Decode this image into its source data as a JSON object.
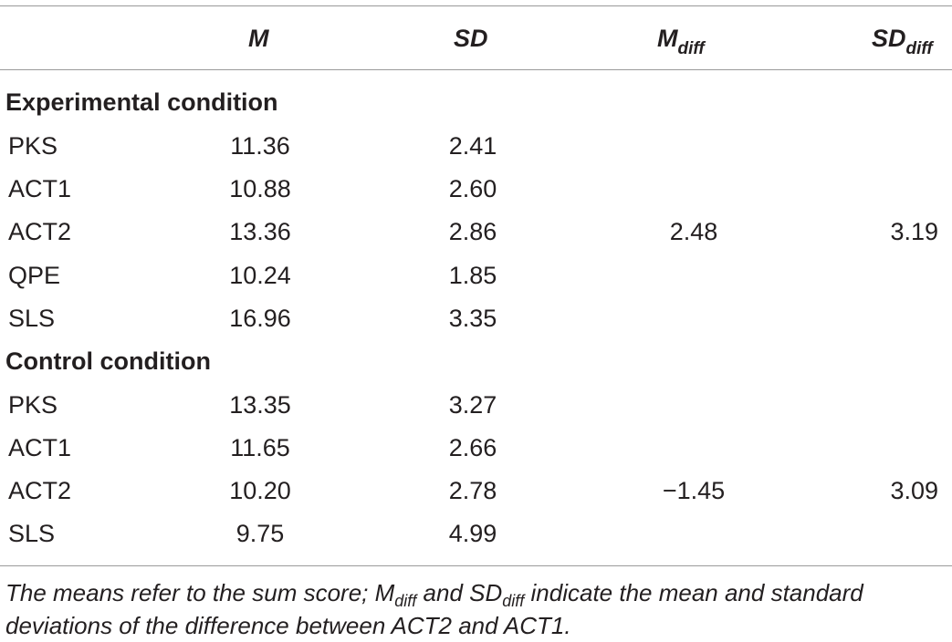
{
  "header": {
    "col_m": "M",
    "col_sd": "SD",
    "col_mdiff_base": "M",
    "col_mdiff_sub": "diff",
    "col_sddiff_base": "SD",
    "col_sddiff_sub": "diff"
  },
  "experimental": {
    "title": "Experimental condition",
    "rows": [
      {
        "label": "PKS",
        "m": "11.36",
        "sd": "2.41"
      },
      {
        "label": "ACT1",
        "m": "10.88",
        "sd": "2.60"
      },
      {
        "label": "ACT2",
        "m": "13.36",
        "sd": "2.86"
      },
      {
        "label": "QPE",
        "m": "10.24",
        "sd": "1.85"
      },
      {
        "label": "SLS",
        "m": "16.96",
        "sd": "3.35"
      }
    ],
    "m_diff": "2.48",
    "sd_diff": "3.19"
  },
  "control": {
    "title": "Control condition",
    "rows": [
      {
        "label": "PKS",
        "m": "13.35",
        "sd": "3.27"
      },
      {
        "label": "ACT1",
        "m": "11.65",
        "sd": "2.66"
      },
      {
        "label": "ACT2",
        "m": "10.20",
        "sd": "2.78"
      },
      {
        "label": "SLS",
        "m": "9.75",
        "sd": "4.99"
      }
    ],
    "m_diff": "−1.45",
    "sd_diff": "3.09"
  },
  "footnote": {
    "part1": "The means refer to the sum score; ",
    "m_base": "M",
    "m_sub": "diff",
    "part2": " and ",
    "sd_base": "SD",
    "sd_sub": "diff",
    "part3": " indicate the mean and standard deviations of the difference between ACT2 and ACT1."
  }
}
